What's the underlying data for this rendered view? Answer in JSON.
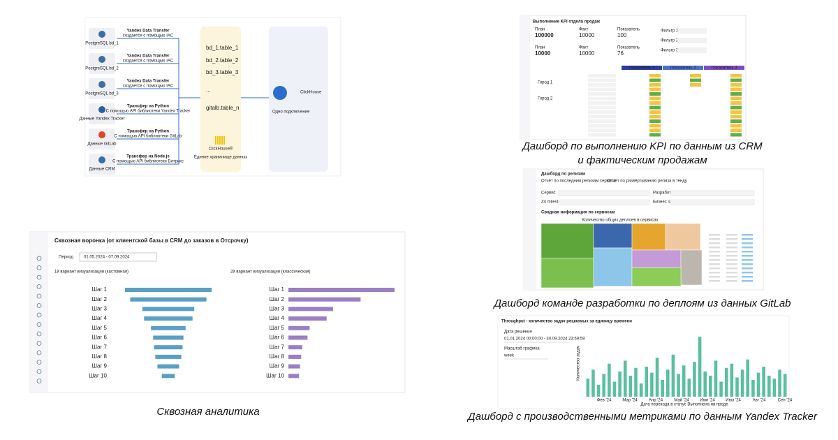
{
  "diagram": {
    "sources": [
      {
        "name": "PostgreSQL bd_1",
        "transfer": "Yandex Data Transfer",
        "note": "создается с помощью IAC"
      },
      {
        "name": "PostgreSQL bd_2",
        "transfer": "Yandex Data Transfer",
        "note": "создается с помощью IAC"
      },
      {
        "name": "PostgreSQL bd_3",
        "transfer": "Yandex Data Transfer",
        "note": "создается с помощью IAC"
      },
      {
        "name": "Данные Yandex Tracker",
        "transfer": "Трансфер на Python",
        "note": "С помощью API библиотеки Yandex Tracker"
      },
      {
        "name": "Данные GitLab",
        "transfer": "Трансфер на Python",
        "note": "С помощью API библиотеки GitLab"
      },
      {
        "name": "Данные CRM",
        "transfer": "Трансфер на Node.js",
        "note": "С помощью API библиотеки Битрикс"
      }
    ],
    "tables": [
      "bd_1.table_1",
      "bd_2.table_2",
      "bd_3.table_3",
      "...",
      "gitalb.table_n"
    ],
    "storage_brand": "ClickHouse®",
    "storage_label": "Единое хранилище данных",
    "target_brand": "ClickHouse",
    "target_label": "Одно подключение"
  },
  "kpi": {
    "title": "Выполнение KPI отдела продаж",
    "cards": [
      {
        "plan_label": "План",
        "plan": "100000",
        "fact_label": "Факт",
        "fact": "10000",
        "metric_label": "Показатель",
        "metric": "100"
      },
      {
        "plan_label": "План",
        "plan": "10000",
        "fact_label": "Факт",
        "fact": "10000",
        "metric_label": "Показатель",
        "metric": "76"
      }
    ],
    "filters": [
      "Фильтр 1",
      "Фильтр 2",
      "Фильтр 3"
    ],
    "indicators": [
      "Показатель 1",
      "Показатель 2",
      "Показатель 3"
    ],
    "cities": [
      "Город 1",
      "Город 2"
    ],
    "caption": [
      "Дашборд по выполнению KPI по данным из CRM",
      "и фактическим продажам"
    ]
  },
  "releases": {
    "title": "Дашборд по релизам",
    "tabs": [
      "Отчёт по последним релизам сервиса",
      "Отчёт по развёртыванию релиза в тенду"
    ],
    "filters": [
      "Сервис",
      "Разработчик",
      "Z4 milestone",
      "Бизнес задача"
    ],
    "section": "Сводная информация по сервисам",
    "treemap_title": "Количество общих деплоев в сервисах",
    "caption": "Дашборд команде разработки по деплоям из данных GitLab"
  },
  "throughput": {
    "title": "Throughput - количество задач решаемых за единицу времени",
    "date_label": "Дата решения",
    "date_range": "01.01.2024 00:00:00 - 30.09.2024 23:59:59",
    "scale_label": "Масштаб графика",
    "scale": "week",
    "y_label": "Количество задач",
    "x_label": "Дата перехода в статус Выполнена на проде",
    "months": [
      "Фев '24",
      "Мар '24",
      "Апр '24",
      "Май '24",
      "Июн '24",
      "Июл '24",
      "Авг '24",
      "Сен '24"
    ],
    "values": [
      30,
      45,
      20,
      38,
      55,
      25,
      42,
      60,
      35,
      48,
      22,
      50,
      40,
      65,
      28,
      45,
      70,
      38,
      52,
      30,
      58,
      100,
      42,
      35,
      60,
      25,
      48,
      55,
      32,
      45,
      62,
      28,
      40,
      50,
      35,
      30,
      45,
      38
    ],
    "color": "#5bbf9f",
    "caption": "Дашборд с производственными метриками по данным Yandex Tracker"
  },
  "funnel": {
    "title": "Сквозная воронка (от клиентской базы в CRM до заказов в Отсрочку)",
    "period_label": "Период",
    "period": "01.05.2024 - 07.09.2024",
    "variant1": "1й вариант визуализации (кастомная)",
    "variant2": "2й вариант визуализации (классическая)",
    "steps": [
      "Шаг 1",
      "Шаг 2",
      "Шаг 3",
      "Шаг 4",
      "Шаг 5",
      "Шаг 6",
      "Шаг 7",
      "Шаг 8",
      "Шаг 9",
      "Шаг 10"
    ],
    "values1": [
      100,
      88,
      60,
      56,
      40,
      35,
      33,
      30,
      25,
      15
    ],
    "values2": [
      100,
      68,
      42,
      36,
      20,
      18,
      13,
      12,
      11,
      10
    ],
    "color1": "#5b9fc4",
    "color2": "#9b7fc4",
    "caption": "Сквозная аналитика"
  }
}
